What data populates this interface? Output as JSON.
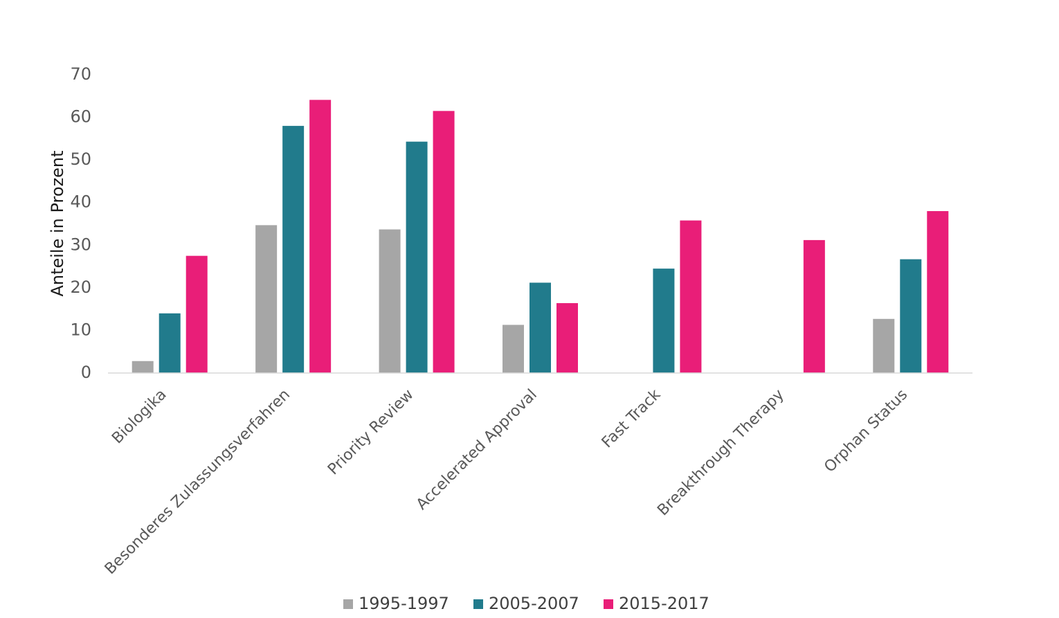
{
  "chart_data": {
    "type": "bar",
    "title": "",
    "xlabel": "",
    "ylabel": "Anteile in Prozent",
    "ylim": [
      0,
      70
    ],
    "yticks": [
      0,
      10,
      20,
      30,
      40,
      50,
      60,
      70
    ],
    "grid": false,
    "legend_position": "bottom",
    "categories": [
      "Biologika",
      "Besonderes Zulassungsverfahren",
      "Priority Review",
      "Accelerated Approval",
      "Fast Track",
      "Breakthrough Therapy",
      "Orphan Status"
    ],
    "series": [
      {
        "name": "1995-1997",
        "color": "#a6a6a6",
        "values": [
          2.8,
          34.7,
          33.7,
          11.3,
          null,
          null,
          12.7
        ]
      },
      {
        "name": "2005-2007",
        "color": "#217b8c",
        "values": [
          14.0,
          58.0,
          54.3,
          21.2,
          24.5,
          null,
          26.7
        ]
      },
      {
        "name": "2015-2017",
        "color": "#e91e78",
        "values": [
          27.5,
          64.1,
          61.5,
          16.4,
          35.8,
          31.2,
          38.0
        ]
      }
    ]
  }
}
